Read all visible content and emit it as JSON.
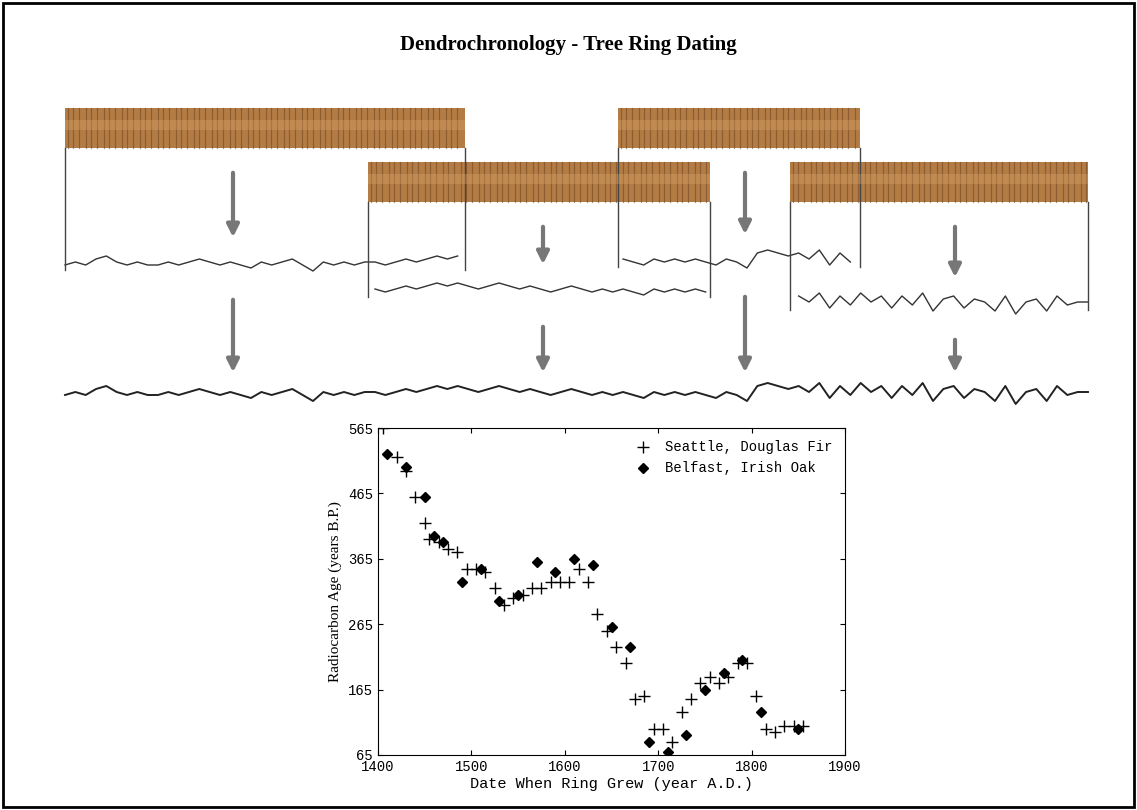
{
  "title": "Dendrochronology - Tree Ring Dating",
  "ring_widths": [
    5,
    6,
    5,
    7,
    8,
    6,
    5,
    6,
    5,
    5,
    6,
    5,
    6,
    7,
    6,
    5,
    6,
    5,
    4,
    6,
    5,
    6,
    7,
    5,
    3,
    6,
    5,
    6,
    5,
    6,
    6,
    5,
    6,
    7,
    6,
    7,
    8,
    7,
    8,
    7,
    6,
    7,
    8,
    7,
    6,
    7,
    6,
    5,
    6,
    7,
    6,
    5,
    6,
    5,
    6,
    5,
    4,
    6,
    5,
    6,
    5,
    6,
    5,
    4,
    6,
    5,
    3,
    8,
    9,
    8,
    7,
    8,
    6,
    9,
    4,
    8,
    5,
    9,
    6,
    8,
    4,
    8,
    5,
    9,
    3,
    7,
    8,
    4,
    7,
    6,
    3,
    8,
    2,
    6,
    7,
    3,
    8,
    5,
    6,
    6
  ],
  "chart_data": {
    "type": "scatter",
    "xlabel": "Date When Ring Grew (year A.D.)",
    "ylabel": "Radiocarbon Age (years B.P.)",
    "xlim": [
      1400,
      1900
    ],
    "xticks": [
      1400,
      1500,
      1600,
      1700,
      1800,
      1900
    ],
    "ylim": [
      65,
      565
    ],
    "yticks": [
      65,
      165,
      265,
      365,
      465,
      565
    ],
    "legend": "upper right",
    "series": [
      {
        "name": "Seattle, Douglas Fir",
        "color": "#000000",
        "marker": "plus",
        "x": [
          1405,
          1420,
          1430,
          1440,
          1450,
          1455,
          1465,
          1475,
          1485,
          1495,
          1505,
          1515,
          1525,
          1535,
          1545,
          1555,
          1565,
          1575,
          1585,
          1595,
          1605,
          1615,
          1625,
          1635,
          1645,
          1655,
          1665,
          1675,
          1685,
          1695,
          1705,
          1715,
          1725,
          1735,
          1745,
          1755,
          1765,
          1775,
          1785,
          1795,
          1805,
          1815,
          1825,
          1835,
          1845,
          1855
        ],
        "values": [
          565,
          520,
          500,
          460,
          420,
          395,
          390,
          380,
          375,
          350,
          350,
          345,
          320,
          295,
          305,
          310,
          320,
          320,
          330,
          330,
          330,
          350,
          330,
          280,
          255,
          230,
          205,
          150,
          155,
          105,
          105,
          85,
          130,
          150,
          175,
          185,
          175,
          185,
          205,
          205,
          155,
          105,
          100,
          110,
          110,
          110
        ]
      },
      {
        "name": "Belfast, Irish Oak",
        "color": "#000000",
        "marker": "diamond",
        "x": [
          1410,
          1430,
          1450,
          1460,
          1470,
          1490,
          1510,
          1530,
          1550,
          1570,
          1590,
          1610,
          1630,
          1650,
          1670,
          1690,
          1710,
          1730,
          1750,
          1770,
          1790,
          1810,
          1850
        ],
        "values": [
          525,
          505,
          460,
          400,
          390,
          330,
          350,
          300,
          310,
          360,
          345,
          365,
          355,
          260,
          230,
          85,
          70,
          95,
          165,
          190,
          210,
          130,
          105
        ]
      }
    ]
  }
}
